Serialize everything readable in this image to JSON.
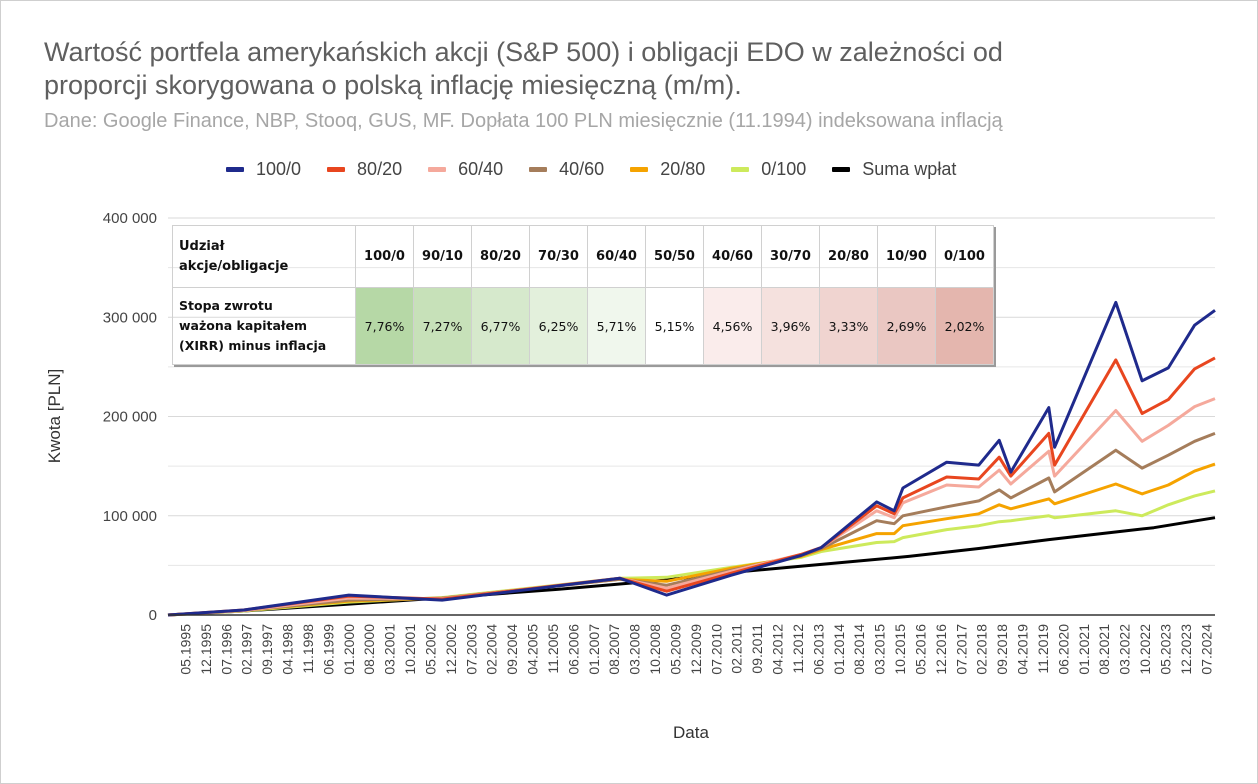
{
  "chart_data": {
    "type": "line",
    "title": "Wartość portfela amerykańskich akcji (S&P 500) i obligacji EDO w zależności od proporcji skorygowana o polską inflację miesięczną (m/m).",
    "title_lines": [
      "Wartość portfela amerykańskich akcji (S&P 500) i obligacji EDO w zależności od",
      "proporcji skorygowana o polską inflację miesięczną (m/m)."
    ],
    "subtitle": "Dane: Google Finance, NBP, Stooq, GUS, MF. Dopłata 100 PLN miesięcznie (11.1994) indeksowana inflacją",
    "xlabel": "Data",
    "ylabel": "Kwota [PLN]",
    "ylim": [
      0,
      400000
    ],
    "yticks": [
      "0",
      "100 000",
      "200 000",
      "300 000",
      "400 000"
    ],
    "ytick_values": [
      0,
      100000,
      200000,
      300000,
      400000
    ],
    "minor_gridlines": [
      50000,
      150000,
      250000,
      350000
    ],
    "grid": true,
    "legend_position": "top",
    "xlim": [
      "11.1994",
      "10.2024"
    ],
    "xticks": [
      "05.1995",
      "12.1995",
      "07.1996",
      "02.1997",
      "09.1997",
      "04.1998",
      "11.1998",
      "06.1999",
      "01.2000",
      "08.2000",
      "03.2001",
      "10.2001",
      "05.2002",
      "12.2002",
      "07.2003",
      "02.2004",
      "09.2004",
      "04.2005",
      "11.2005",
      "06.2006",
      "01.2007",
      "08.2007",
      "03.2008",
      "10.2008",
      "05.2009",
      "12.2009",
      "07.2010",
      "02.2011",
      "09.2011",
      "04.2012",
      "11.2012",
      "06.2013",
      "01.2014",
      "08.2014",
      "03.2015",
      "10.2015",
      "05.2016",
      "12.2016",
      "07.2017",
      "02.2018",
      "09.2018",
      "04.2019",
      "11.2019",
      "06.2020",
      "01.2021",
      "08.2021",
      "03.2022",
      "10.2022",
      "05.2023",
      "12.2023",
      "07.2024"
    ],
    "x": [
      "11.1994",
      "01.1997",
      "01.2000",
      "09.2002",
      "10.2007",
      "02.2009",
      "12.2010",
      "12.2012",
      "07.2013",
      "02.2015",
      "08.2015",
      "11.2015",
      "02.2017",
      "01.2018",
      "08.2018",
      "12.2018",
      "01.2020",
      "03.2020",
      "12.2021",
      "09.2022",
      "06.2023",
      "03.2024",
      "10.2024"
    ],
    "series": [
      {
        "name": "100/0",
        "color": "#1f2a8c",
        "values": [
          0,
          5000,
          20000,
          15000,
          37000,
          20000,
          40000,
          60000,
          68000,
          114000,
          105000,
          128000,
          154000,
          151000,
          176000,
          144000,
          209000,
          169000,
          315000,
          236000,
          249000,
          292000,
          307000
        ]
      },
      {
        "name": "80/20",
        "color": "#e8461f",
        "values": [
          0,
          5000,
          19000,
          16000,
          37000,
          24000,
          42000,
          61000,
          68000,
          110000,
          102000,
          118000,
          139000,
          137000,
          159000,
          140000,
          183000,
          151000,
          257000,
          203000,
          217000,
          248000,
          259000
        ]
      },
      {
        "name": "60/40",
        "color": "#f5a99c",
        "values": [
          0,
          4500,
          17000,
          16500,
          37000,
          27000,
          44000,
          61000,
          68000,
          105000,
          98000,
          113000,
          131000,
          129000,
          146000,
          132000,
          165000,
          140000,
          206000,
          175000,
          191000,
          210000,
          218000
        ]
      },
      {
        "name": "40/60",
        "color": "#a57d5b",
        "values": [
          0,
          4500,
          15000,
          17000,
          36000,
          30000,
          45000,
          60000,
          67000,
          95000,
          92000,
          100000,
          109000,
          115000,
          126000,
          118000,
          138000,
          124000,
          166000,
          148000,
          161000,
          175000,
          183000
        ]
      },
      {
        "name": "20/80",
        "color": "#f5a300",
        "values": [
          0,
          4500,
          14000,
          17000,
          36000,
          34000,
          47000,
          59000,
          66000,
          82000,
          82000,
          90000,
          97000,
          102000,
          111000,
          107000,
          117000,
          112000,
          132000,
          122000,
          131000,
          145000,
          152000
        ]
      },
      {
        "name": "0/100",
        "color": "#cdea5c",
        "values": [
          0,
          4000,
          13000,
          17500,
          37000,
          38000,
          48000,
          58000,
          64000,
          73000,
          74000,
          78000,
          86000,
          90000,
          94000,
          95000,
          100000,
          98000,
          105000,
          100000,
          111000,
          120000,
          125000
        ]
      },
      {
        "name": "Suma wpłat",
        "color": "#000000",
        "x": [
          "11.1994",
          "01.1997",
          "01.2000",
          "01.2003",
          "01.2006",
          "01.2009",
          "01.2011",
          "07.2013",
          "01.2016",
          "01.2018",
          "01.2020",
          "01.2022",
          "01.2023",
          "10.2024"
        ],
        "values": [
          0,
          4000,
          11000,
          18000,
          26000,
          35000,
          43000,
          51000,
          59000,
          67000,
          76000,
          84000,
          88000,
          98000
        ]
      }
    ],
    "table": {
      "row_headers": [
        "Udział akcje/obligacje",
        "Stopa zwrotu ważona kapitałem (XIRR) minus inflacja"
      ],
      "row_header_lines": [
        [
          "Udział",
          "akcje/obligacje"
        ],
        [
          "Stopa zwrotu",
          "ważona kapitałem",
          "(XIRR) minus inflacja"
        ]
      ],
      "columns": [
        "100/0",
        "90/10",
        "80/20",
        "70/30",
        "60/40",
        "50/50",
        "40/60",
        "30/70",
        "20/80",
        "10/90",
        "0/100"
      ],
      "values": [
        "7,76%",
        "7,27%",
        "6,77%",
        "6,25%",
        "5,71%",
        "5,15%",
        "4,56%",
        "3,96%",
        "3,33%",
        "2,69%",
        "2,02%"
      ],
      "cell_colors": [
        "#b6d8a6",
        "#c7e1b9",
        "#d6e9cc",
        "#e3f0dc",
        "#f0f7ed",
        "#ffffff",
        "#faeceb",
        "#f5e1de",
        "#f0d4d0",
        "#eac7c2",
        "#e4b6ae"
      ]
    }
  }
}
